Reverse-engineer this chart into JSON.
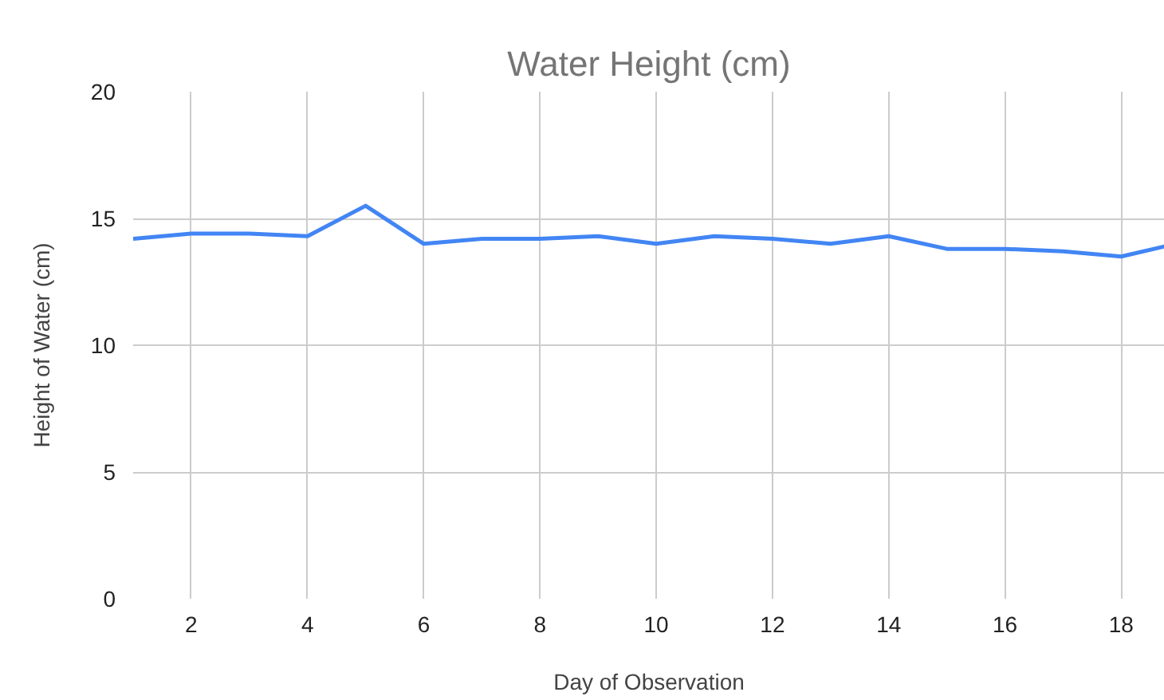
{
  "chart_data": {
    "type": "line",
    "title": "Water Height (cm)",
    "xlabel": "Day of Observation",
    "ylabel": "Height of Water (cm)",
    "x": [
      1,
      2,
      3,
      4,
      5,
      6,
      7,
      8,
      9,
      10,
      11,
      12,
      13,
      14,
      15,
      16,
      17,
      18,
      18.75
    ],
    "series": [
      {
        "color": "#4285f4",
        "values": [
          14.2,
          14.4,
          14.4,
          14.3,
          15.5,
          14.0,
          14.2,
          14.2,
          14.3,
          14.0,
          14.3,
          14.2,
          14.0,
          14.3,
          13.8,
          13.8,
          13.7,
          13.5,
          13.9
        ]
      }
    ],
    "xlim": [
      1,
      18.75
    ],
    "ylim": [
      0,
      20
    ],
    "xticks": [
      2,
      4,
      6,
      8,
      10,
      12,
      14,
      16,
      18
    ],
    "yticks": [
      0,
      5,
      10,
      15,
      20
    ],
    "grid": true,
    "marker": "none",
    "line_style": "solid"
  }
}
